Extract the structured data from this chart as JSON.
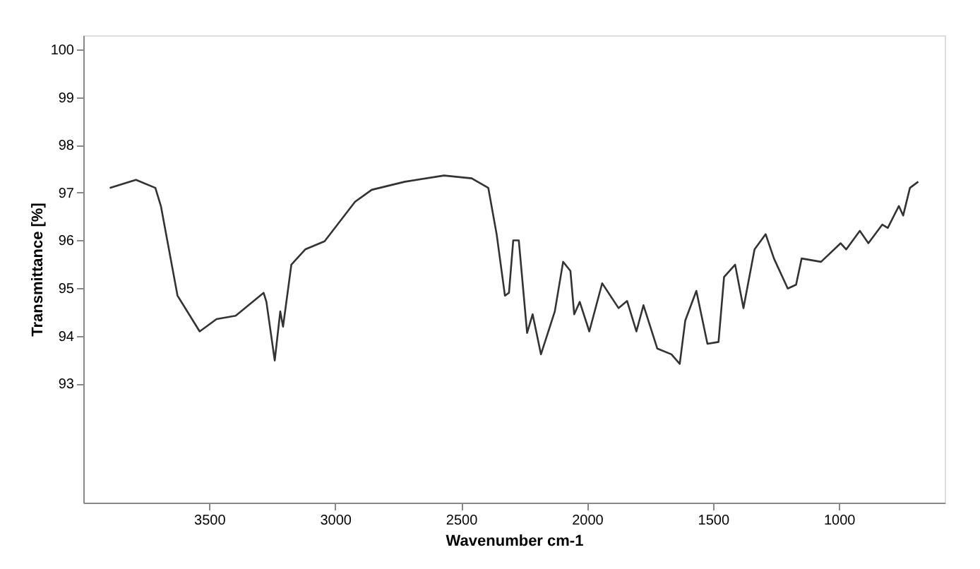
{
  "chart_data": {
    "type": "line",
    "xlabel": "Wavenumber cm-1",
    "ylabel": "Transmittance [%]",
    "xlim": [
      4000,
      580
    ],
    "xticks": [
      3500,
      3000,
      2500,
      2000,
      1500,
      1000
    ],
    "ylim": [
      90.5,
      100.3
    ],
    "yticks": [
      93,
      94,
      95,
      96,
      97,
      98,
      99,
      100
    ],
    "grid": false,
    "marker": "none",
    "line_style": "solid",
    "series": [
      {
        "color": "#333333",
        "x": [
          3895,
          3791,
          3714,
          3692,
          3626,
          3538,
          3471,
          3395,
          3284,
          3273,
          3240,
          3218,
          3207,
          3174,
          3119,
          3042,
          2921,
          2855,
          2723,
          2568,
          2458,
          2392,
          2359,
          2326,
          2310,
          2293,
          2271,
          2238,
          2216,
          2183,
          2128,
          2095,
          2066,
          2051,
          2029,
          1991,
          1940,
          1875,
          1841,
          1804,
          1776,
          1721,
          1665,
          1632,
          1610,
          1566,
          1522,
          1478,
          1456,
          1412,
          1379,
          1335,
          1291,
          1258,
          1203,
          1170,
          1148,
          1071,
          993,
          971,
          917,
          883,
          828,
          806,
          762,
          745,
          718,
          685
        ],
        "values": [
          97.1,
          97.27,
          97.1,
          96.72,
          94.84,
          94.09,
          94.35,
          94.42,
          94.9,
          94.71,
          93.48,
          94.51,
          94.19,
          95.49,
          95.81,
          95.98,
          96.81,
          97.06,
          97.23,
          97.36,
          97.3,
          97.1,
          96.13,
          94.84,
          94.9,
          96.0,
          96.0,
          94.06,
          94.45,
          93.61,
          94.51,
          95.55,
          95.36,
          94.45,
          94.71,
          94.09,
          95.1,
          94.58,
          94.73,
          94.09,
          94.64,
          93.73,
          93.61,
          93.41,
          94.32,
          94.94,
          93.83,
          93.87,
          95.23,
          95.49,
          94.58,
          95.81,
          96.13,
          95.62,
          94.99,
          95.07,
          95.62,
          95.55,
          95.94,
          95.81,
          96.2,
          95.94,
          96.33,
          96.26,
          96.72,
          96.52,
          97.1,
          97.23
        ]
      }
    ]
  }
}
